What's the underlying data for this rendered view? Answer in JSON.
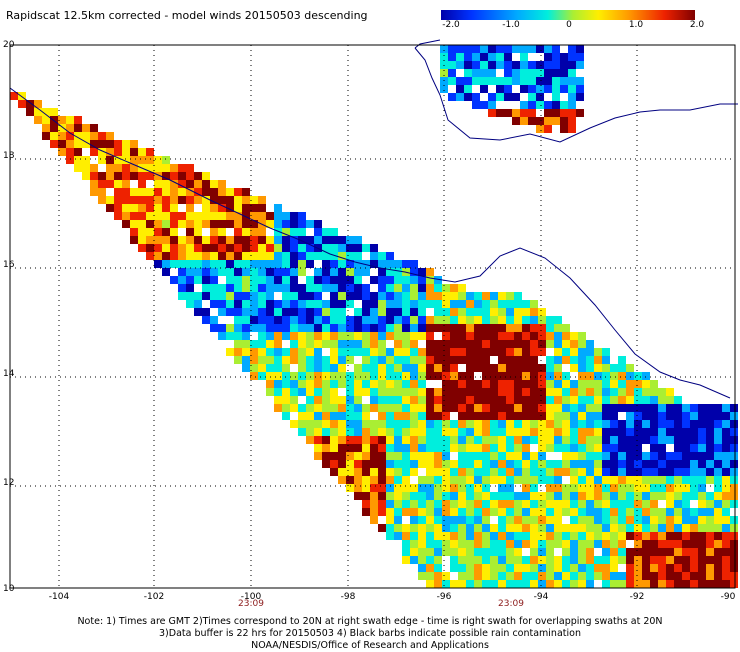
{
  "title": "Rapidscat 12.5km corrected - model winds 20150503 descending",
  "colorbar": {
    "ticks": [
      "-2.0",
      "-1.0",
      "0",
      "1.0",
      "2.0"
    ],
    "colors": [
      "#0000aa",
      "#0033ff",
      "#00aaff",
      "#00eedd",
      "#aaee33",
      "#ffee00",
      "#ff9900",
      "#ee2200",
      "#800000"
    ]
  },
  "map": {
    "lat_labels": [
      "20",
      "18",
      "16",
      "14",
      "12",
      "10"
    ],
    "lon_labels": [
      "-104",
      "-102",
      "-100",
      "-98",
      "-96",
      "-94",
      "-92",
      "-90"
    ],
    "time_labels": [
      {
        "lon": "-100",
        "text": "23:09"
      },
      {
        "lon": "-95",
        "text": "23:09"
      }
    ],
    "extent": {
      "lon_min": -105,
      "lon_max": -90,
      "lat_min": 10,
      "lat_max": 20
    },
    "grid": "dotted"
  },
  "notes": [
    "Note: 1) Times are GMT 2)Times correspond to 20N at right swath edge - time is right swath for overlapping swaths at 20N",
    "3)Data buffer is 22 hrs for 20150503 4) Black barbs indicate possible rain contamination",
    "NOAA/NESDIS/Office of Research and Applications"
  ]
}
